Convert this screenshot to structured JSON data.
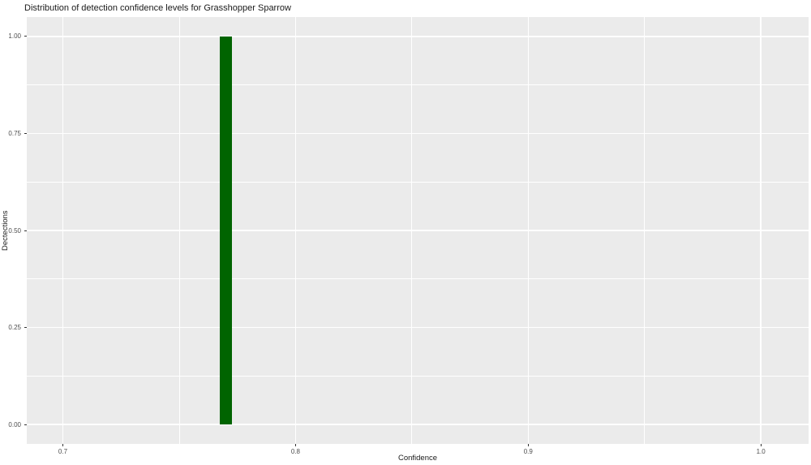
{
  "chart_data": {
    "type": "bar",
    "title": "Distribution of detection confidence levels for Grasshopper Sparrow",
    "xlabel": "Confidence",
    "ylabel": "Dectections",
    "bars": [
      {
        "x_center": 0.77,
        "x_width": 0.0052,
        "value": 1.0
      }
    ],
    "x_axis": {
      "tick_labels": [
        "0.7",
        "0.8",
        "0.9",
        "1.0"
      ],
      "tick_values": [
        0.7,
        0.8,
        0.9,
        1.0
      ],
      "minor_values": [
        0.75,
        0.85,
        0.95
      ],
      "range": [
        0.6845,
        1.0205
      ]
    },
    "y_axis": {
      "tick_labels": [
        "0.00",
        "0.25",
        "0.50",
        "0.75",
        "1.00"
      ],
      "tick_values": [
        0.0,
        0.25,
        0.5,
        0.75,
        1.0
      ],
      "minor_values": [
        0.125,
        0.375,
        0.625,
        0.875
      ],
      "range": [
        -0.05,
        1.05
      ]
    },
    "legend": "none",
    "grid": "major-and-minor",
    "colors": {
      "bar_fill": "#006400",
      "panel_background": "#EBEBEB",
      "gridline": "#FFFFFF",
      "tick_text": "#4D4D4D",
      "tick_mark": "#333333",
      "title_text": "#1A1A1A"
    }
  }
}
